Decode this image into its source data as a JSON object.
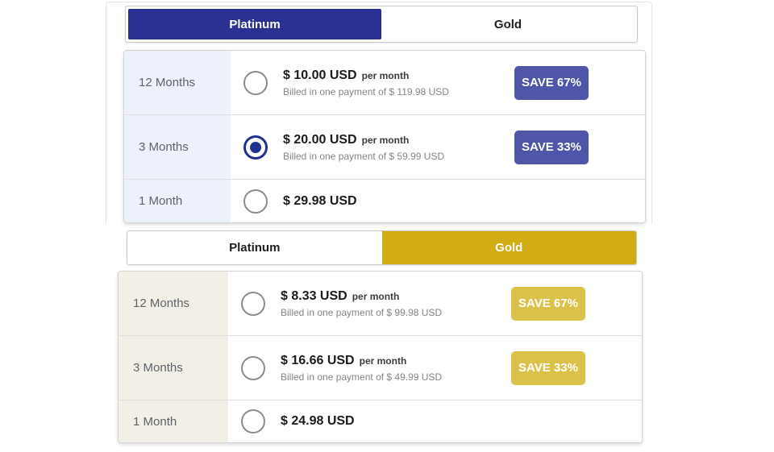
{
  "colors": {
    "platinum_primary": "#2b3192",
    "platinum_badge": "#4f55a8",
    "platinum_radio_checked": "#20318f",
    "platinum_row_label_bg": "#edf1fb",
    "gold_primary": "#d1ac14",
    "gold_badge": "#d9c14a",
    "gold_row_label_bg": "#f1efe6"
  },
  "platinum_panel": {
    "tabs": {
      "platinum": "Platinum",
      "gold": "Gold",
      "active": "Platinum"
    },
    "rows": [
      {
        "duration": "12 Months",
        "price": "$ 10.00 USD",
        "per": "per month",
        "billed": "Billed in one payment of $ 119.98 USD",
        "badge": "SAVE 67%",
        "selected": false
      },
      {
        "duration": "3 Months",
        "price": "$ 20.00 USD",
        "per": "per month",
        "billed": "Billed in one payment of $ 59.99 USD",
        "badge": "SAVE 33%",
        "selected": true
      },
      {
        "duration": "1 Month",
        "price": "$ 29.98 USD",
        "selected": false
      }
    ]
  },
  "gold_panel": {
    "tabs": {
      "platinum": "Platinum",
      "gold": "Gold",
      "active": "Gold"
    },
    "rows": [
      {
        "duration": "12 Months",
        "price": "$ 8.33 USD",
        "per": "per month",
        "billed": "Billed in one payment of $ 99.98 USD",
        "badge": "SAVE 67%",
        "selected": false
      },
      {
        "duration": "3 Months",
        "price": "$ 16.66 USD",
        "per": "per month",
        "billed": "Billed in one payment of $ 49.99 USD",
        "badge": "SAVE 33%",
        "selected": false
      },
      {
        "duration": "1 Month",
        "price": "$ 24.98 USD",
        "selected": false
      }
    ]
  }
}
